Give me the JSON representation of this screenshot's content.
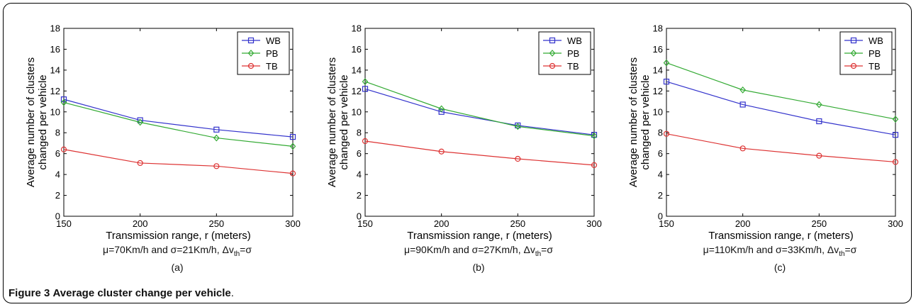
{
  "figure": {
    "label": "Figure 3",
    "text": "Average cluster change per vehicle",
    "suffix": "."
  },
  "chart_data": [
    {
      "type": "line",
      "xlabel": "Transmission range, r (meters)",
      "ylabel_line1": "Average number of clusters",
      "ylabel_line2": "changed per vehicle",
      "xlim": [
        150,
        300
      ],
      "ylim": [
        0,
        18
      ],
      "xticks": [
        150,
        200,
        250,
        300
      ],
      "yticks": [
        0,
        2,
        4,
        6,
        8,
        10,
        12,
        14,
        16,
        18
      ],
      "legend_position": "top-right",
      "grid": false,
      "caption": "μ=70Km/h and σ=21Km/h, Δv",
      "caption_sub": "th",
      "caption_tail": "=σ",
      "letter": "(a)",
      "x": [
        150,
        200,
        250,
        300
      ],
      "series": [
        {
          "name": "WB",
          "color": "#3333cc",
          "marker": "square",
          "values": [
            11.2,
            9.2,
            8.3,
            7.6
          ]
        },
        {
          "name": "PB",
          "color": "#33aa33",
          "marker": "diamond",
          "values": [
            10.9,
            9.0,
            7.5,
            6.7
          ]
        },
        {
          "name": "TB",
          "color": "#dd3333",
          "marker": "circle",
          "values": [
            6.4,
            5.1,
            4.8,
            4.1
          ]
        }
      ]
    },
    {
      "type": "line",
      "xlabel": "Transmission range, r (meters)",
      "ylabel_line1": "Average number of clusters",
      "ylabel_line2": "changed per vehicle",
      "xlim": [
        150,
        300
      ],
      "ylim": [
        0,
        18
      ],
      "xticks": [
        150,
        200,
        250,
        300
      ],
      "yticks": [
        0,
        2,
        4,
        6,
        8,
        10,
        12,
        14,
        16,
        18
      ],
      "legend_position": "top-right",
      "grid": false,
      "caption": "μ=90Km/h and σ=27Km/h, Δv",
      "caption_sub": "th",
      "caption_tail": "=σ",
      "letter": "(b)",
      "x": [
        150,
        200,
        250,
        300
      ],
      "series": [
        {
          "name": "WB",
          "color": "#3333cc",
          "marker": "square",
          "values": [
            12.2,
            10.0,
            8.7,
            7.8
          ]
        },
        {
          "name": "PB",
          "color": "#33aa33",
          "marker": "diamond",
          "values": [
            12.9,
            10.3,
            8.6,
            7.7
          ]
        },
        {
          "name": "TB",
          "color": "#dd3333",
          "marker": "circle",
          "values": [
            7.2,
            6.2,
            5.5,
            4.9
          ]
        }
      ]
    },
    {
      "type": "line",
      "xlabel": "Transmission range, r (meters)",
      "ylabel_line1": "Average number of clusters",
      "ylabel_line2": "changed per vehicle",
      "xlim": [
        150,
        300
      ],
      "ylim": [
        0,
        18
      ],
      "xticks": [
        150,
        200,
        250,
        300
      ],
      "yticks": [
        0,
        2,
        4,
        6,
        8,
        10,
        12,
        14,
        16,
        18
      ],
      "legend_position": "top-right",
      "grid": false,
      "caption": "μ=110Km/h and σ=33Km/h, Δv",
      "caption_sub": "th",
      "caption_tail": "=σ",
      "letter": "(c)",
      "x": [
        150,
        200,
        250,
        300
      ],
      "series": [
        {
          "name": "WB",
          "color": "#3333cc",
          "marker": "square",
          "values": [
            12.9,
            10.7,
            9.1,
            7.8
          ]
        },
        {
          "name": "PB",
          "color": "#33aa33",
          "marker": "diamond",
          "values": [
            14.7,
            12.1,
            10.7,
            9.3
          ]
        },
        {
          "name": "TB",
          "color": "#dd3333",
          "marker": "circle",
          "values": [
            7.9,
            6.5,
            5.8,
            5.2
          ]
        }
      ]
    }
  ]
}
